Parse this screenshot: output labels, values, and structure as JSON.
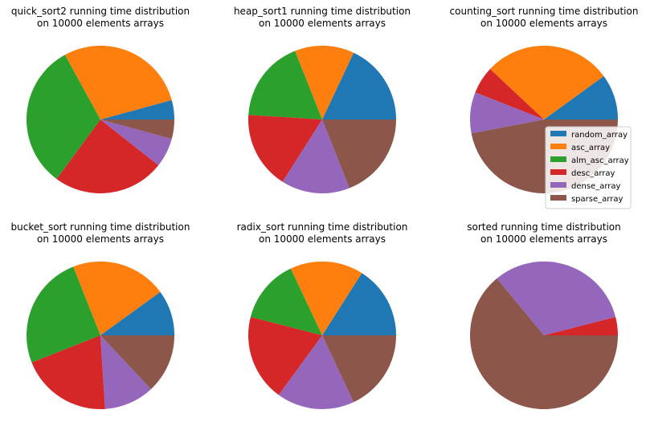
{
  "legend": {
    "placement": "right",
    "entries": [
      "random_array",
      "asc_array",
      "alm_asc_array",
      "desc_array",
      "dense_array",
      "sparse_array"
    ]
  },
  "colors": {
    "random_array": "#1f77b4",
    "asc_array": "#ff7f0e",
    "alm_asc_array": "#2ca02c",
    "desc_array": "#d62728",
    "dense_array": "#9467bd",
    "sparse_array": "#8c564b"
  },
  "chart_data": [
    {
      "type": "pie",
      "title": "quick_sort2 running time distribution\non 10000 elements arrays",
      "labels": [
        "random_array",
        "asc_array",
        "alm_asc_array",
        "desc_array",
        "dense_array",
        "sparse_array"
      ],
      "values": [
        4,
        27,
        30,
        23,
        6,
        4
      ]
    },
    {
      "type": "pie",
      "title": "heap_sort1 running time distribution\non 10000 elements arrays",
      "labels": [
        "random_array",
        "asc_array",
        "alm_asc_array",
        "desc_array",
        "dense_array",
        "sparse_array"
      ],
      "values": [
        18,
        13,
        18,
        17,
        15,
        19
      ]
    },
    {
      "type": "pie",
      "title": "counting_sort running time distribution\non 10000 elements arrays",
      "labels": [
        "random_array",
        "asc_array",
        "alm_asc_array",
        "desc_array",
        "dense_array",
        "sparse_array"
      ],
      "values": [
        10,
        28,
        0,
        6,
        9,
        47
      ]
    },
    {
      "type": "pie",
      "title": "bucket_sort running time distribution\non 10000 elements arrays",
      "labels": [
        "random_array",
        "asc_array",
        "alm_asc_array",
        "desc_array",
        "dense_array",
        "sparse_array"
      ],
      "values": [
        10,
        21,
        25,
        20,
        11,
        13
      ]
    },
    {
      "type": "pie",
      "title": "radix_sort running time distribution\non 10000 elements arrays",
      "labels": [
        "random_array",
        "asc_array",
        "alm_asc_array",
        "desc_array",
        "dense_array",
        "sparse_array"
      ],
      "values": [
        16,
        16,
        14,
        19,
        17,
        18
      ]
    },
    {
      "type": "pie",
      "title": "sorted running time distribution\non 10000 elements arrays",
      "labels": [
        "random_array",
        "asc_array",
        "alm_asc_array",
        "desc_array",
        "dense_array",
        "sparse_array"
      ],
      "values": [
        0,
        0,
        0,
        4,
        32,
        64
      ]
    }
  ]
}
